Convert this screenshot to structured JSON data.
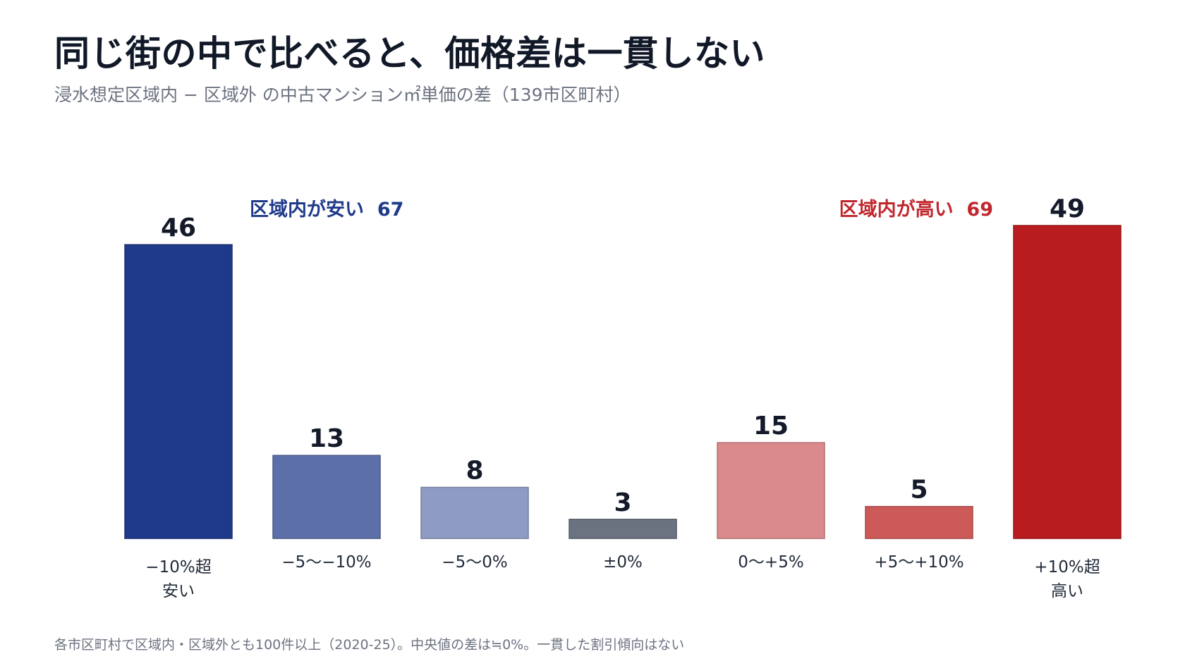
{
  "title": "同じ街の中で比べると、価格差は一貫しない",
  "subtitle": "浸水想定区域内 − 区域外 の中古マンション㎡単価の差（139市区町村）",
  "group_labels": {
    "left": {
      "label": "区域内が安い",
      "count": "67",
      "color": "#1f3a8a"
    },
    "right": {
      "label": "区域内が高い",
      "count": "69",
      "color": "#c0272d"
    }
  },
  "footnote": "各市区町村で区域内・区域外とも100件以上（2020-25）。中央値の差は≒0%。一貫した割引傾向はない",
  "chart_data": {
    "type": "bar",
    "categories": [
      "−10%超\n安い",
      "−5〜−10%",
      "−5〜0%",
      "±0%",
      "0〜+5%",
      "+5〜+10%",
      "+10%超\n高い"
    ],
    "values": [
      46,
      13,
      8,
      3,
      15,
      5,
      49
    ],
    "colors": [
      "#1f3a8a",
      "#5c6fa8",
      "#8e9bc3",
      "#6b7280",
      "#da8a8b",
      "#cb5a59",
      "#b91c1f"
    ],
    "ylim": [
      0,
      49
    ],
    "grid": false,
    "legend": "none"
  }
}
